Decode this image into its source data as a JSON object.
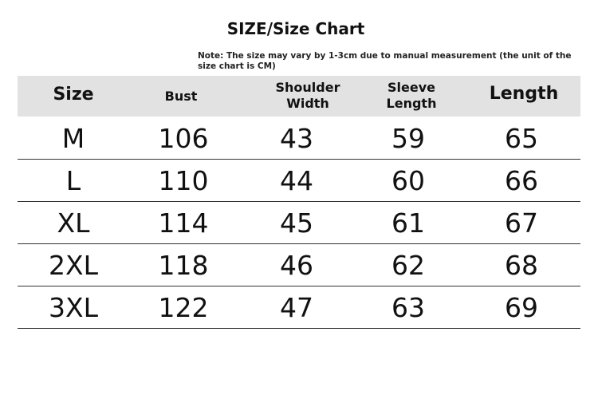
{
  "title": "SIZE/Size Chart",
  "note": "Note: The size may vary by 1-3cm due to manual measurement (the unit of the size chart is CM)",
  "columns": [
    "Size",
    "Bust",
    "Shoulder Width",
    "Sleeve Length",
    "Length"
  ],
  "rows": [
    [
      "M",
      "106",
      "43",
      "59",
      "65"
    ],
    [
      "L",
      "110",
      "44",
      "60",
      "66"
    ],
    [
      "XL",
      "114",
      "45",
      "61",
      "67"
    ],
    [
      "2XL",
      "118",
      "46",
      "62",
      "68"
    ],
    [
      "3XL",
      "122",
      "47",
      "63",
      "69"
    ]
  ],
  "colors": {
    "header_bg": "#e2e2e2",
    "text": "#111111"
  }
}
